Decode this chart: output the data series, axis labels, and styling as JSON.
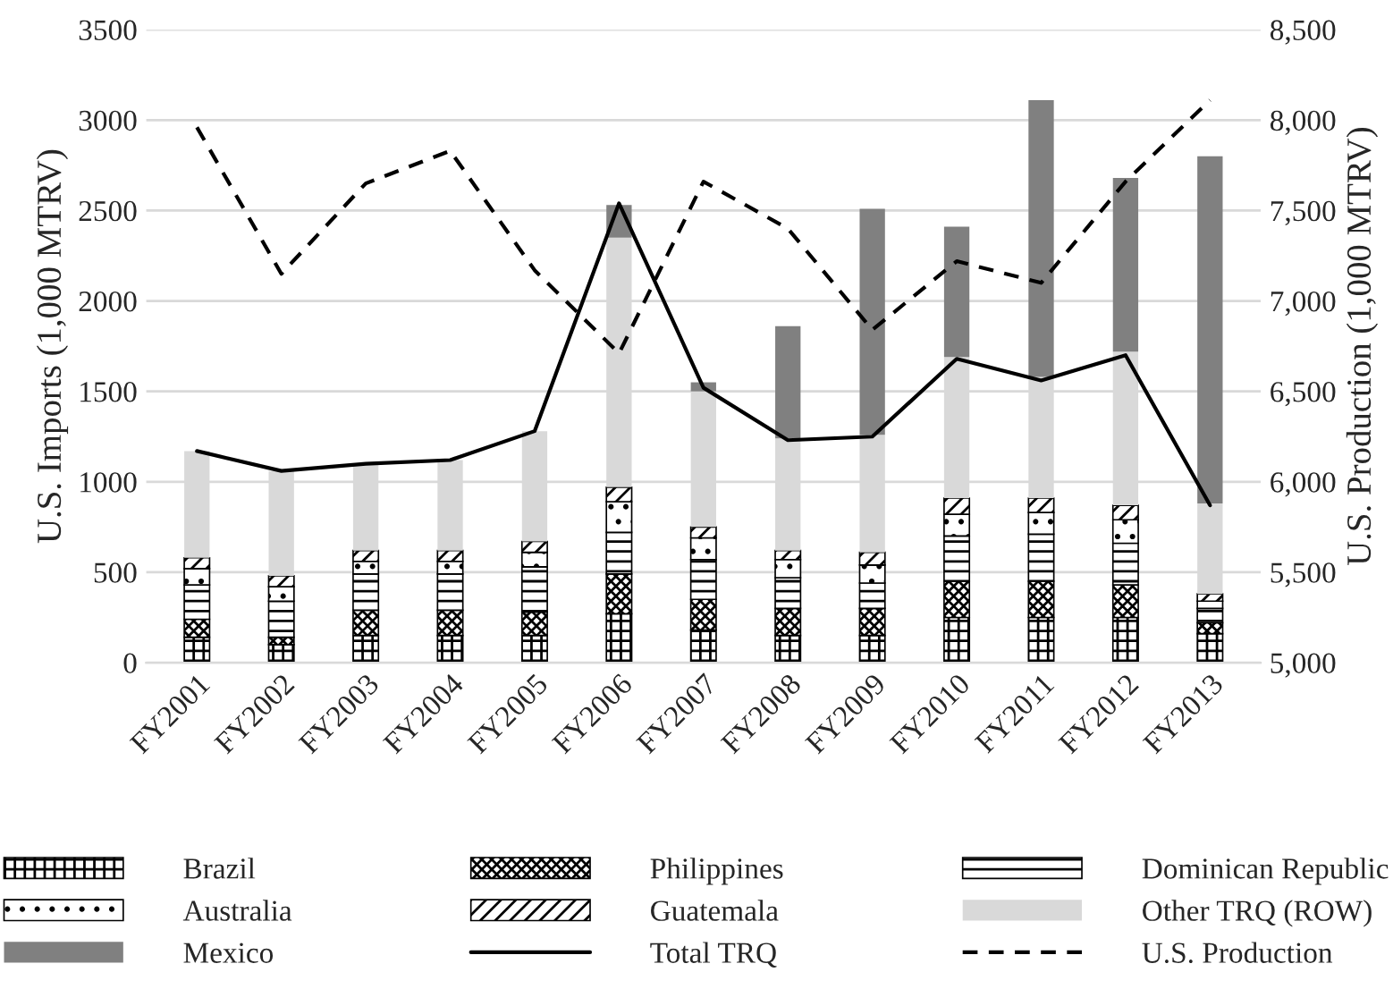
{
  "chart_data": {
    "type": "bar",
    "stacked": true,
    "ylabel": "U.S. Imports (1,000 MTRV)",
    "y2label": "U.S. Production (1,000 MTRV)",
    "categories": [
      "FY2001",
      "FY2002",
      "FY2003",
      "FY2004",
      "FY2005",
      "FY2006",
      "FY2007",
      "FY2008",
      "FY2009",
      "FY2010",
      "FY2011",
      "FY2012",
      "FY2013"
    ],
    "series": [
      {
        "name": "Brazil",
        "color": "#000000",
        "values": [
          140,
          100,
          150,
          150,
          150,
          270,
          180,
          150,
          150,
          250,
          250,
          250,
          160
        ]
      },
      {
        "name": "Philippines",
        "color": "#000000",
        "values": [
          100,
          40,
          140,
          140,
          130,
          220,
          170,
          150,
          150,
          200,
          200,
          180,
          60
        ]
      },
      {
        "name": "Dominican Republic",
        "color": "#000000",
        "values": [
          190,
          200,
          200,
          200,
          250,
          230,
          220,
          170,
          140,
          250,
          260,
          230,
          80
        ]
      },
      {
        "name": "Australia",
        "color": "#000000",
        "values": [
          90,
          80,
          70,
          70,
          80,
          170,
          120,
          100,
          100,
          120,
          120,
          130,
          40
        ]
      },
      {
        "name": "Guatemala",
        "color": "#000000",
        "values": [
          60,
          60,
          60,
          60,
          60,
          80,
          60,
          50,
          70,
          90,
          80,
          80,
          40
        ]
      },
      {
        "name": "Other TRQ (ROW)",
        "color": "#d9d9d9",
        "values": [
          590,
          580,
          480,
          500,
          610,
          1380,
          750,
          620,
          650,
          780,
          670,
          850,
          500
        ]
      },
      {
        "name": "Mexico",
        "color": "#808080",
        "values": [
          0,
          0,
          0,
          0,
          0,
          180,
          50,
          620,
          1250,
          720,
          1530,
          960,
          1920
        ]
      },
      {
        "name": "Total TRQ",
        "type": "line",
        "line_style": "solid",
        "color": "#000000",
        "values": [
          1170,
          1060,
          1100,
          1120,
          1280,
          2540,
          1520,
          1230,
          1250,
          1680,
          1560,
          1700,
          870
        ]
      },
      {
        "name": "U.S. Production",
        "type": "line",
        "line_style": "dashed",
        "axis": "y2",
        "color": "#000000",
        "values": [
          7960,
          7150,
          7650,
          7830,
          7170,
          6710,
          7660,
          7400,
          6840,
          7220,
          7100,
          7660,
          8110
        ]
      }
    ],
    "ylim": [
      0,
      3500
    ],
    "yticks": [
      0,
      500,
      1000,
      1500,
      2000,
      2500,
      3000,
      3500
    ],
    "y2lim": [
      5000,
      8500
    ],
    "y2ticks": [
      {
        "value": 5000,
        "label": "5,000"
      },
      {
        "value": 5500,
        "label": "5,500"
      },
      {
        "value": 6000,
        "label": "6,000"
      },
      {
        "value": 6500,
        "label": "6,500"
      },
      {
        "value": 7000,
        "label": "7,000"
      },
      {
        "value": 7500,
        "label": "7,500"
      },
      {
        "value": 8000,
        "label": "8,000"
      },
      {
        "value": 8500,
        "label": "8,500"
      }
    ],
    "grid": "y",
    "legend": "bottom"
  }
}
